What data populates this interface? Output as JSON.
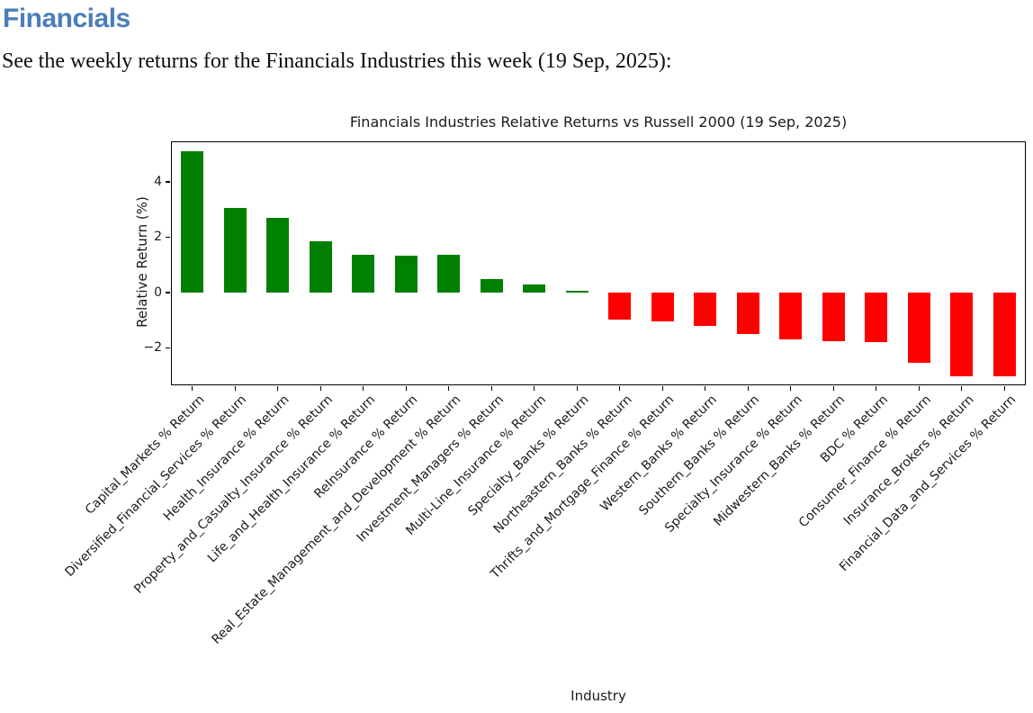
{
  "page": {
    "heading": "Financials",
    "description": "See the weekly returns for the Financials Industries this week (19 Sep, 2025):"
  },
  "chart_data": {
    "type": "bar",
    "title": "Financials Industries Relative Returns vs Russell 2000 (19 Sep, 2025)",
    "xlabel": "Industry",
    "ylabel": "Relative Return (%)",
    "ylim": [
      -3.36,
      5.47
    ],
    "yticks": [
      -2,
      0,
      2,
      4
    ],
    "grid": false,
    "legend": "none",
    "positive_color": "#008000",
    "negative_color": "#ff0000",
    "categories": [
      "Capital_Markets % Return",
      "Diversified_Financial_Services % Return",
      "Health_Insurance % Return",
      "Property_and_Casualty_Insurance % Return",
      "Life_and_Health_Insurance % Return",
      "ReInsurance % Return",
      "Real_Estate_Management_and_Development % Return",
      "Investment_Managers % Return",
      "Multi-Line_Insurance % Return",
      "Specialty_Banks % Return",
      "Northeastern_Banks % Return",
      "Thrifts_and_Mortgage_Finance % Return",
      "Western_Banks % Return",
      "Southern_Banks % Return",
      "Specialty_Insurance % Return",
      "Midwestern_Banks % Return",
      "BDC % Return",
      "Consumer_Finance % Return",
      "Insurance_Brokers % Return",
      "Financial_Data_and_Services % Return"
    ],
    "values": [
      5.1,
      3.05,
      2.7,
      1.85,
      1.38,
      1.33,
      1.35,
      0.47,
      0.3,
      0.07,
      -0.98,
      -1.05,
      -1.2,
      -1.5,
      -1.7,
      -1.75,
      -1.8,
      -2.55,
      -3.05,
      -3.05
    ]
  }
}
